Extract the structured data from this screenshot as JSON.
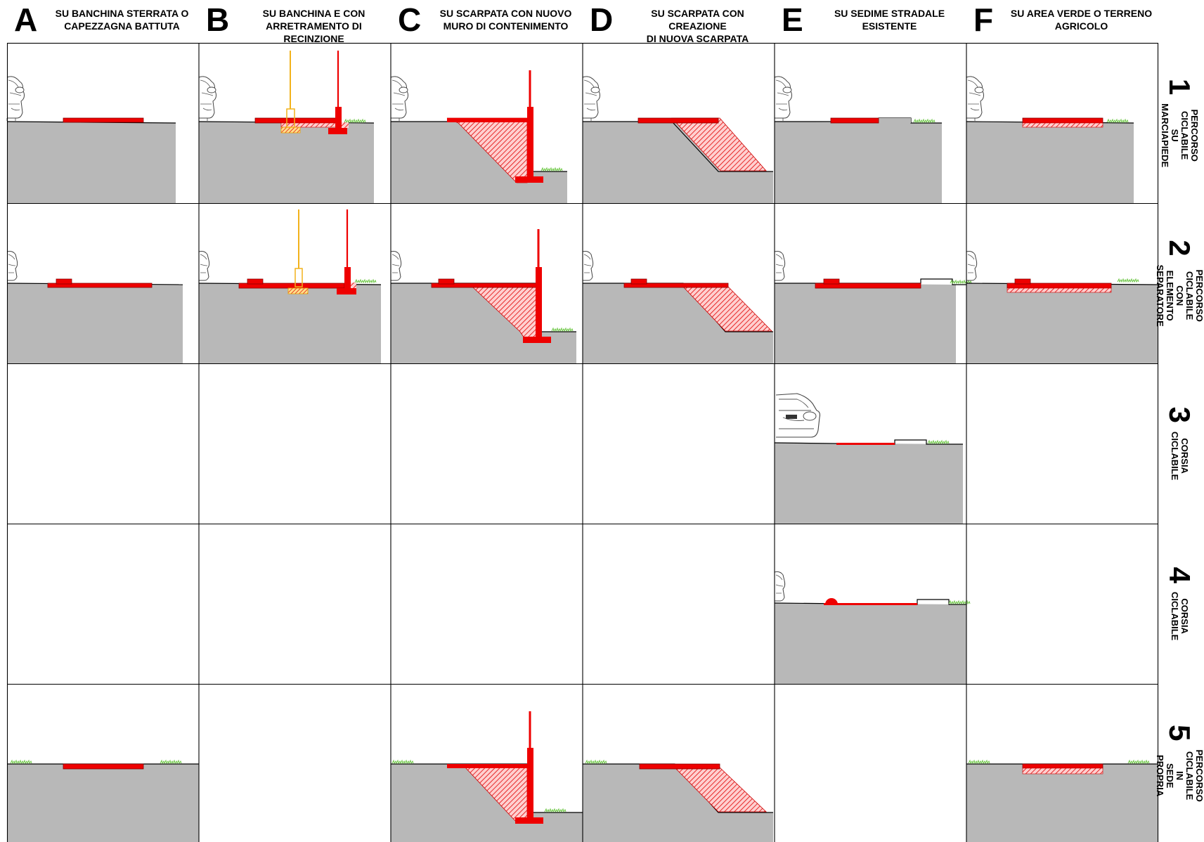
{
  "columns": [
    {
      "letter": "A",
      "title": "SU BANCHINA STERRATA O\nCAPEZZAGNA BATTUTA"
    },
    {
      "letter": "B",
      "title": "SU BANCHINA E CON\nARRETRAMENTO DI RECINZIONE"
    },
    {
      "letter": "C",
      "title": "SU SCARPATA CON NUOVO\nMURO DI CONTENIMENTO"
    },
    {
      "letter": "D",
      "title": "SU SCARPATA CON CREAZIONE\nDI NUOVA SCARPATA"
    },
    {
      "letter": "E",
      "title": "SU SEDIME STRADALE\nESISTENTE"
    },
    {
      "letter": "F",
      "title": "SU AREA VERDE O TERRENO\nAGRICOLO"
    }
  ],
  "rows": [
    {
      "number": "1",
      "title": "PERCORSO CICLABILE\nSU MARCIAPIEDE"
    },
    {
      "number": "2",
      "title": "PERCORSO CICLABILE CON\nELEMENTO SEPARATORE"
    },
    {
      "number": "3",
      "title": "CORSIA CICLABILE"
    },
    {
      "number": "4",
      "title": "CORSIA CICLABILE"
    },
    {
      "number": "5",
      "title": "PERCORSO CICLABILE IN\nSEDE PROPRIA"
    }
  ],
  "cells": [
    [
      "A1-banchina",
      "B1-recinzione",
      "C1-muro",
      "D1-scarpata",
      "E1-sedime",
      "F1-area-verde"
    ],
    [
      "A2-banchina",
      "B2-recinzione",
      "C2-muro",
      "D2-scarpata",
      "E2-sedime",
      "F2-area-verde"
    ],
    [
      "",
      "",
      "",
      "",
      "E3-corsia",
      ""
    ],
    [
      "",
      "",
      "",
      "",
      "E4-corsia",
      ""
    ],
    [
      "A5-banchina",
      "",
      "C5-muro",
      "D5-scarpata",
      "",
      "F5-area-verde"
    ]
  ],
  "colors": {
    "ground": "#b8b8b8",
    "cycle_path": "#ee0000",
    "fence": "#f2b21b",
    "grass": "#6cc644",
    "grid_line": "#000000"
  }
}
